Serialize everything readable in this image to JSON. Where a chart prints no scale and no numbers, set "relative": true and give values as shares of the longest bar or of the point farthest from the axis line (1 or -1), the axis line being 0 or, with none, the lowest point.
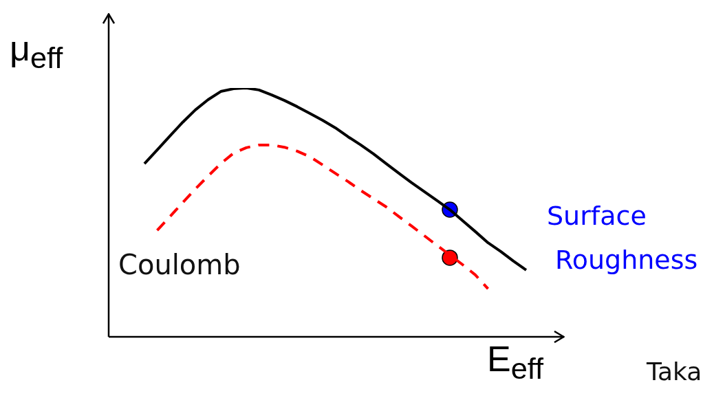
{
  "chart_data": {
    "type": "line",
    "xlabel": "E$_{eff}$",
    "ylabel": "μ$_{eff}$",
    "relative": true,
    "categories": [
      null,
      null,
      null,
      null,
      null,
      null,
      null,
      null,
      null,
      null,
      null,
      null,
      null,
      null,
      null,
      null,
      null,
      null,
      null,
      null,
      null,
      null,
      null,
      null,
      null,
      null,
      null,
      null,
      null,
      null,
      null
    ],
    "annotations": [
      "Coulomb",
      "Taka"
    ],
    "series": [
      {
        "type": "line",
        "color": "#000000",
        "line_style": "solid",
        "marker": "none",
        "values": [
          0.696,
          0.751,
          0.807,
          0.862,
          0.912,
          0.953,
          0.986,
          0.997,
          1,
          0.992,
          0.972,
          0.95,
          0.925,
          0.898,
          0.87,
          0.84,
          0.804,
          0.771,
          0.735,
          0.696,
          0.657,
          0.619,
          0.583,
          0.547,
          0.511,
          0.467,
          0.423,
          0.378,
          0.343,
          0.304,
          0.268
        ]
      },
      {
        "type": "line",
        "color": "#ff0000",
        "line_style": "dashed",
        "marker": "none",
        "values": [
          null,
          0.428,
          0.483,
          0.539,
          0.594,
          0.646,
          0.696,
          0.738,
          0.76,
          0.771,
          0.771,
          0.762,
          0.746,
          0.724,
          0.691,
          0.657,
          0.624,
          0.588,
          0.555,
          0.522,
          0.483,
          0.445,
          0.406,
          0.367,
          0.329,
          0.29,
          0.249,
          0.193,
          null,
          null,
          null
        ]
      },
      {
        "type": "line",
        "name": "Surface Roughness",
        "color": "#0000ff",
        "marker": "circle",
        "values": [
          null,
          null,
          null,
          null,
          null,
          null,
          null,
          null,
          null,
          null,
          null,
          null,
          null,
          null,
          null,
          null,
          null,
          null,
          null,
          null,
          null,
          null,
          null,
          null,
          0.511,
          null,
          null,
          null,
          null,
          null,
          null
        ]
      },
      {
        "type": "line",
        "color": "#ff0000",
        "marker": "circle",
        "values": [
          null,
          null,
          null,
          null,
          null,
          null,
          null,
          null,
          null,
          null,
          null,
          null,
          null,
          null,
          null,
          null,
          null,
          null,
          null,
          null,
          null,
          null,
          null,
          null,
          0.318,
          null,
          null,
          null,
          null,
          null,
          null
        ]
      }
    ]
  }
}
